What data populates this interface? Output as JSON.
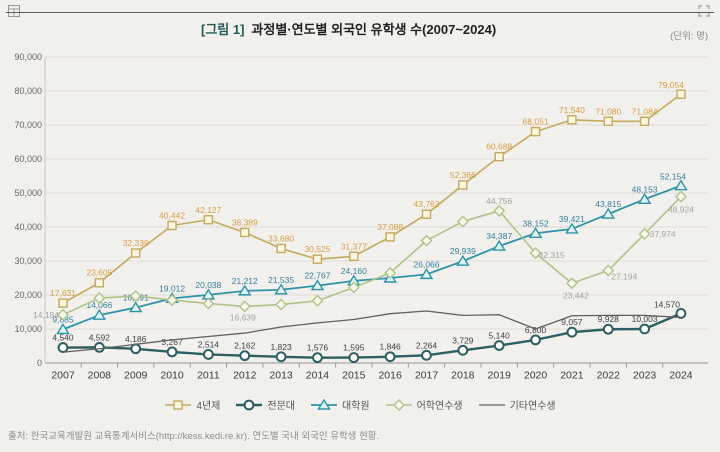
{
  "page": {
    "background": "#f2f0ed"
  },
  "header": {
    "figure_label": "[그림 1]",
    "title": "과정별·연도별 외국인 유학생 수(2007~2024)",
    "unit_note": "(단위: 명)",
    "icons": {
      "top_left": "grid-icon",
      "top_right": "expand-icon"
    }
  },
  "chart_data": {
    "type": "line",
    "x": [
      2007,
      2008,
      2009,
      2010,
      2011,
      2012,
      2013,
      2014,
      2015,
      2016,
      2017,
      2018,
      2019,
      2020,
      2021,
      2022,
      2023,
      2024
    ],
    "xlabel": "",
    "ylabel": "",
    "ylim": [
      0,
      90000
    ],
    "y_ticks": [
      0,
      10000,
      20000,
      30000,
      40000,
      50000,
      60000,
      70000,
      80000,
      90000
    ],
    "grid": true,
    "legend_position": "bottom",
    "series": [
      {
        "name": "4년제",
        "marker": "square",
        "color": "#C5A85C",
        "marker_fill": "#FBF5E2",
        "label_color": "#DB9A3E",
        "line_width": 1.6,
        "values": [
          17631,
          23605,
          32339,
          40442,
          42127,
          38389,
          33680,
          30525,
          31377,
          37088,
          43762,
          52366,
          60688,
          68051,
          71540,
          71080,
          71084,
          79054
        ],
        "labeled_years": [
          2007,
          2008,
          2009,
          2010,
          2011,
          2012,
          2013,
          2014,
          2015,
          2016,
          2017,
          2018,
          2019,
          2020,
          2021,
          2022,
          2023,
          2024
        ],
        "label_offsets": {
          "2024": [
            -10,
            -6
          ]
        }
      },
      {
        "name": "전문대",
        "marker": "circle",
        "color": "#2A5F63",
        "marker_fill": "#FFFFFF",
        "label_color": "#3F3F3F",
        "line_width": 2.4,
        "values": [
          4540,
          4592,
          4186,
          3267,
          2514,
          2162,
          1823,
          1576,
          1595,
          1846,
          2264,
          3729,
          5140,
          6800,
          9057,
          9928,
          10003,
          14570
        ],
        "labeled_years": [
          2007,
          2008,
          2009,
          2010,
          2011,
          2012,
          2013,
          2014,
          2015,
          2016,
          2017,
          2018,
          2019,
          2020,
          2021,
          2022,
          2023,
          2024
        ],
        "label_offsets": {
          "2024": [
            -14,
            -6
          ]
        }
      },
      {
        "name": "대학원",
        "marker": "triangle",
        "color": "#2E93A8",
        "marker_fill": "#E2F2F3",
        "label_color": "#2F80A0",
        "line_width": 1.8,
        "values": [
          9885,
          14066,
          16291,
          19012,
          20038,
          21212,
          21535,
          22767,
          24160,
          25000,
          26066,
          29939,
          34387,
          38152,
          39421,
          43815,
          48153,
          52154
        ],
        "labeled_years": [
          2007,
          2008,
          2009,
          2010,
          2011,
          2012,
          2013,
          2014,
          2015,
          2017,
          2018,
          2019,
          2020,
          2021,
          2022,
          2023,
          2024
        ],
        "label_offsets": {
          "2024": [
            -8,
            -6
          ]
        }
      },
      {
        "name": "어학연수생",
        "marker": "diamond",
        "color": "#AFC386",
        "marker_fill": "#F4F7E9",
        "label_color": "#A2A29E",
        "line_width": 1.6,
        "values": [
          14184,
          19100,
          19700,
          18500,
          17500,
          16639,
          17200,
          18300,
          22200,
          26500,
          36000,
          41600,
          44756,
          32315,
          23442,
          27194,
          37974,
          48924
        ],
        "labeled_years": [
          2007,
          2012,
          2019,
          2020,
          2021,
          2022,
          2023,
          2024
        ],
        "label_offsets": {
          "2007": [
            -24,
            3
          ],
          "2012": [
            -2,
            14
          ],
          "2020": [
            16,
            5
          ],
          "2021": [
            4,
            15
          ],
          "2022": [
            16,
            9
          ],
          "2023": [
            18,
            3
          ],
          "2024": [
            0,
            16
          ]
        }
      },
      {
        "name": "기타연수생",
        "marker": "none",
        "color": "#5F5F5F",
        "marker_fill": "#FFFFFF",
        "label_color": "#5F5F5F",
        "line_width": 1.3,
        "values": [
          3200,
          4200,
          5500,
          6800,
          7800,
          8800,
          10600,
          11800,
          12800,
          14500,
          15300,
          14000,
          14200,
          10000,
          13900,
          14000,
          14000,
          13400
        ],
        "labeled_years": [],
        "label_offsets": {}
      }
    ]
  },
  "footer": {
    "source": "출처: 한국교육개발원 교육통계서비스(http://kess.kedi.re.kr). 연도별 국내 외국인 유학생 현황."
  }
}
